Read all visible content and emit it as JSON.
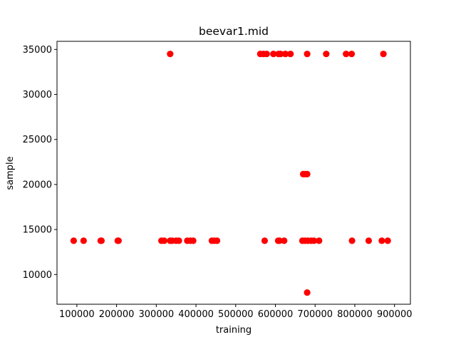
{
  "chart_data": {
    "type": "scatter",
    "title": "beevar1.mid",
    "xlabel": "training",
    "ylabel": "sample",
    "xlim": [
      50000,
      940000
    ],
    "ylim": [
      6700,
      35900
    ],
    "xticks": [
      100000,
      200000,
      300000,
      400000,
      500000,
      600000,
      700000,
      800000,
      900000
    ],
    "xtick_labels": [
      "100000",
      "200000",
      "300000",
      "400000",
      "500000",
      "600000",
      "700000",
      "800000",
      "900000"
    ],
    "yticks": [
      10000,
      15000,
      20000,
      25000,
      30000,
      35000
    ],
    "ytick_labels": [
      "10000",
      "15000",
      "20000",
      "25000",
      "30000",
      "35000"
    ],
    "grid": false,
    "marker_color": "#ff0000",
    "series": [
      {
        "points": [
          [
            92000,
            13750
          ],
          [
            117000,
            13750
          ],
          [
            160000,
            13750
          ],
          [
            162000,
            13750
          ],
          [
            203000,
            13750
          ],
          [
            205000,
            13750
          ],
          [
            313000,
            13750
          ],
          [
            320000,
            13750
          ],
          [
            335000,
            13750
          ],
          [
            340000,
            13750
          ],
          [
            350000,
            13750
          ],
          [
            357000,
            13750
          ],
          [
            378000,
            13750
          ],
          [
            386000,
            13750
          ],
          [
            393000,
            13750
          ],
          [
            440000,
            13750
          ],
          [
            446000,
            13750
          ],
          [
            453000,
            13750
          ],
          [
            573000,
            13750
          ],
          [
            607000,
            13750
          ],
          [
            610000,
            13750
          ],
          [
            622000,
            13750
          ],
          [
            668000,
            13750
          ],
          [
            675000,
            13750
          ],
          [
            682000,
            13750
          ],
          [
            690000,
            13750
          ],
          [
            697000,
            13750
          ],
          [
            710000,
            13750
          ],
          [
            793000,
            13750
          ],
          [
            835000,
            13750
          ],
          [
            868000,
            13750
          ],
          [
            883000,
            13750
          ],
          [
            335000,
            34500
          ],
          [
            562000,
            34500
          ],
          [
            570000,
            34500
          ],
          [
            578000,
            34500
          ],
          [
            595000,
            34500
          ],
          [
            608000,
            34500
          ],
          [
            613000,
            34500
          ],
          [
            625000,
            34500
          ],
          [
            638000,
            34500
          ],
          [
            680000,
            34500
          ],
          [
            728000,
            34500
          ],
          [
            778000,
            34500
          ],
          [
            792000,
            34500
          ],
          [
            872000,
            34500
          ],
          [
            670000,
            21150
          ],
          [
            675000,
            21150
          ],
          [
            680000,
            21150
          ],
          [
            680000,
            8000
          ]
        ]
      }
    ]
  }
}
